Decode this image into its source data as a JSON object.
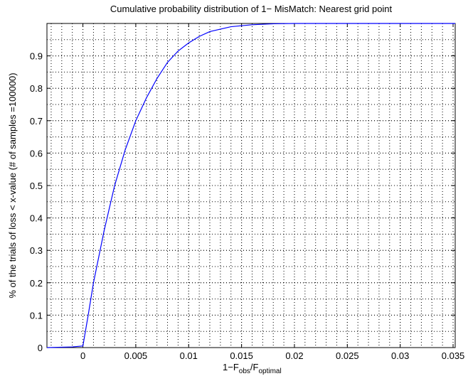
{
  "chart_data": {
    "type": "line",
    "title": "Cumulative probability distribution of 1− MisMatch: Nearest grid point",
    "xlabel": [
      "1−F",
      "obs",
      "/F",
      "optimal"
    ],
    "ylabel": "% of the trials of loss < x-value (# of samples =100000)",
    "xlim": [
      -0.0034,
      0.0352
    ],
    "ylim": [
      0,
      1
    ],
    "xticks": [
      0,
      0.005,
      0.01,
      0.015,
      0.02,
      0.025,
      0.03,
      0.035
    ],
    "yticks": [
      0,
      0.1,
      0.2,
      0.3,
      0.4,
      0.5,
      0.6,
      0.7,
      0.8,
      0.9
    ],
    "grid": true,
    "minor_grid": true,
    "series": [
      {
        "color": "#0000ff",
        "x": [
          -0.0034,
          -0.001,
          0,
          0.0005,
          0.001,
          0.0015,
          0.002,
          0.003,
          0.004,
          0.005,
          0.006,
          0.007,
          0.008,
          0.009,
          0.01,
          0.011,
          0.012,
          0.014,
          0.016,
          0.018,
          0.02,
          0.0352
        ],
        "values": [
          0,
          0.002,
          0.005,
          0.1,
          0.2,
          0.28,
          0.36,
          0.5,
          0.61,
          0.7,
          0.77,
          0.83,
          0.88,
          0.915,
          0.94,
          0.96,
          0.975,
          0.99,
          0.996,
          0.999,
          1,
          1
        ]
      }
    ]
  }
}
